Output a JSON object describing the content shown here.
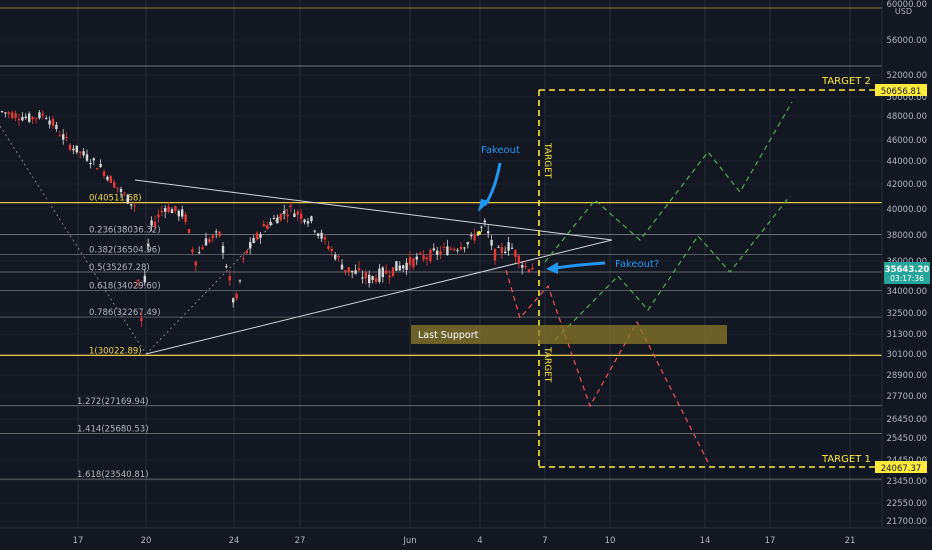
{
  "chart_data": {
    "type": "candlestick",
    "currency": "USD",
    "y_axis_ticks": [
      "60000.00",
      "56000.00",
      "52000.00",
      "50000.00",
      "48000.00",
      "46000.00",
      "44000.00",
      "42000.00",
      "40000.00",
      "38000.00",
      "36000.00",
      "34000.00",
      "32500.00",
      "31300.00",
      "30100.00",
      "28900.00",
      "27700.00",
      "26450.00",
      "25450.00",
      "24450.00",
      "23450.00",
      "22550.00",
      "21700.00"
    ],
    "x_axis_ticks": [
      "17",
      "20",
      "24",
      "27",
      "Jun",
      "4",
      "7",
      "10",
      "14",
      "17",
      "21"
    ],
    "current_price": "35643.20",
    "countdown": "03:17:36",
    "target_labels": {
      "target2": "TARGET 2",
      "target1": "TARGET 1"
    },
    "target_values": {
      "target2": "50656.81",
      "target1": "24067.37"
    },
    "vertical_target_text": "TARGET",
    "fib_levels": [
      {
        "label": "0(40511.68)",
        "price": 40511.68
      },
      {
        "label": "0.236(38036.32)",
        "price": 38036.32
      },
      {
        "label": "0.382(36504.96)",
        "price": 36504.96
      },
      {
        "label": "0.5(35267.28)",
        "price": 35267.28
      },
      {
        "label": "0.618(34029.60)",
        "price": 34029.6
      },
      {
        "label": "0.786(32267.49)",
        "price": 32267.49
      },
      {
        "label": "1(30022.89)",
        "price": 30022.89
      },
      {
        "label": "1.272(27169.94)",
        "price": 27169.94
      },
      {
        "label": "1.414(25680.53)",
        "price": 25680.53
      },
      {
        "label": "1.618(23540.81)",
        "price": 23540.81
      }
    ],
    "annotations": {
      "fakeout": "Fakeout",
      "fakeout_q": "Fakeout?",
      "last_support": "Last Support"
    }
  },
  "colors": {
    "background": "#131722",
    "grid": "#2a2e39",
    "up": "#d8d8d8",
    "down": "#e53935",
    "fib_white": "#c9c9c9",
    "fib_yellow": "#f2d64b",
    "target_yellow": "#ffeb3b",
    "green_projection": "#4caf50",
    "red_projection": "#ef5350",
    "blue_annotation": "#2196f3",
    "support_box": "#8a7a2a",
    "price_badge": "#26a69a"
  }
}
